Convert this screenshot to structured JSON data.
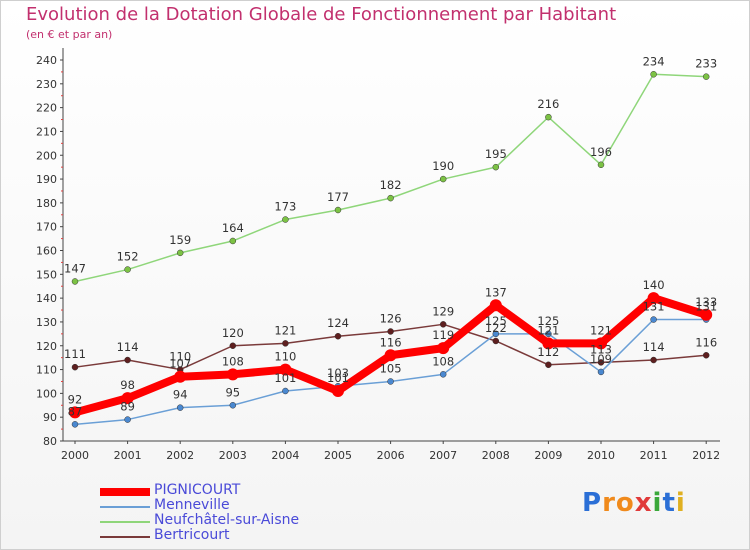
{
  "title": "Evolution de la Dotation Globale de Fonctionnement par Habitant",
  "subtitle": "(en € et par an)",
  "logo": {
    "text": "Proxiti",
    "letters": [
      "P",
      "r",
      "o",
      "x",
      "i",
      "t",
      "i"
    ],
    "colors": [
      "#2b6fd6",
      "#f08a1c",
      "#f08a1c",
      "#e03a3a",
      "#3aa83a",
      "#2b6fd6",
      "#e0b020"
    ]
  },
  "chart_data": {
    "type": "line",
    "title": "Evolution de la Dotation Globale de Fonctionnement par Habitant",
    "subtitle": "(en € et par an)",
    "x": [
      "2000",
      "2001",
      "2002",
      "2003",
      "2004",
      "2005",
      "2006",
      "2007",
      "2008",
      "2009",
      "2010",
      "2011",
      "2012"
    ],
    "ylim": [
      80,
      240
    ],
    "yticks": [
      80,
      90,
      100,
      110,
      120,
      130,
      140,
      150,
      160,
      170,
      180,
      190,
      200,
      210,
      220,
      230,
      240
    ],
    "grid": false,
    "legend_position": "bottom-left",
    "series": [
      {
        "name": "Neufchâtel-sur-Aisne",
        "color": "#8fd67a",
        "marker": "#7cc244",
        "width": 1.5,
        "values": [
          147,
          152,
          159,
          164,
          173,
          177,
          182,
          190,
          195,
          216,
          196,
          234,
          233
        ]
      },
      {
        "name": "Bertricourt",
        "color": "#7a3a3a",
        "marker": "#5e1f1f",
        "width": 1.5,
        "values": [
          111,
          114,
          110,
          120,
          121,
          124,
          126,
          129,
          122,
          112,
          113,
          114,
          116
        ]
      },
      {
        "name": "Menneville",
        "color": "#6a9fd6",
        "marker": "#4a88d0",
        "width": 1.5,
        "values": [
          87,
          89,
          94,
          95,
          101,
          103,
          105,
          108,
          125,
          125,
          109,
          131,
          131
        ]
      },
      {
        "name": "PIGNICOURT",
        "color": "#ff0000",
        "marker": "#ff0000",
        "width": 8,
        "values": [
          92,
          98,
          107,
          108,
          110,
          101,
          116,
          119,
          137,
          121,
          121,
          140,
          133
        ]
      }
    ],
    "data_labels": [
      {
        "series": "Neufchâtel-sur-Aisne",
        "labels": [
          "147",
          "152",
          "159",
          "164",
          "173",
          "177",
          "182",
          "190",
          "195",
          "216",
          "196",
          "234",
          "233"
        ]
      },
      {
        "series": "Bertricourt",
        "labels": [
          "111",
          "114",
          "110",
          "120",
          "121",
          "124",
          "126",
          "129",
          "122",
          "112",
          "113",
          "114",
          "116"
        ]
      },
      {
        "series": "Menneville",
        "labels": [
          "87",
          "89",
          "94",
          "95",
          "101",
          "103",
          "105",
          "108",
          "125",
          "125",
          "109",
          "131",
          "131"
        ]
      },
      {
        "series": "PIGNICOURT",
        "labels": [
          "92",
          "98",
          "107",
          "108",
          "110",
          "101",
          "116",
          "119",
          "137",
          "121",
          "121",
          "140",
          "133"
        ]
      }
    ]
  },
  "legend": [
    {
      "label": "PIGNICOURT",
      "color": "#ff0000",
      "thickness": 8
    },
    {
      "label": "Menneville",
      "color": "#6a9fd6",
      "thickness": 2
    },
    {
      "label": "Neufchâtel-sur-Aisne",
      "color": "#8fd67a",
      "thickness": 2
    },
    {
      "label": "Bertricourt",
      "color": "#7a3a3a",
      "thickness": 2
    }
  ]
}
